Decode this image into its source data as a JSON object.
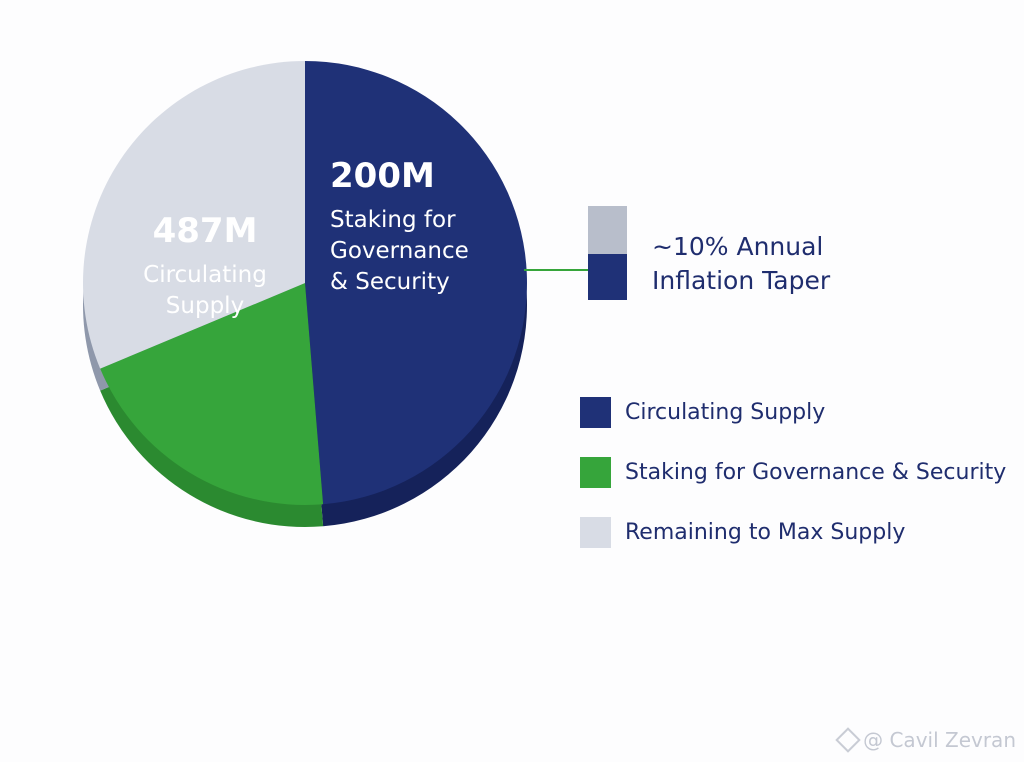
{
  "chart_data": {
    "type": "pie",
    "slices": [
      {
        "label": "Circulating Supply",
        "value": 487,
        "display_value": "487M",
        "display_label": [
          "Circulating",
          "Supply"
        ],
        "color": "#1f3177"
      },
      {
        "label": "Staking for Governance & Security",
        "value": 200,
        "display_value": "200M",
        "display_label": [
          "Staking for",
          "Governance",
          "& Security"
        ],
        "color": "#36a53b"
      },
      {
        "label": "Remaining to Max Supply",
        "value": 313,
        "display_value": "",
        "display_label": [],
        "color": "#d8dce5"
      }
    ],
    "legend": [
      {
        "label": "Circulating Supply",
        "color": "#1f3177"
      },
      {
        "label": "Staking for Governance & Security",
        "color": "#36a53b"
      },
      {
        "label": "Remaining to Max Supply",
        "color": "#d8dce5"
      }
    ],
    "legend_position": "right",
    "annotation": {
      "lines": [
        "~10% Annual",
        "Inflation Taper"
      ],
      "colors": [
        "#b8becb",
        "#1f3177"
      ]
    }
  },
  "watermark": {
    "text": "@ Cavil Zevran",
    "icon": "diamond-logo-icon"
  }
}
